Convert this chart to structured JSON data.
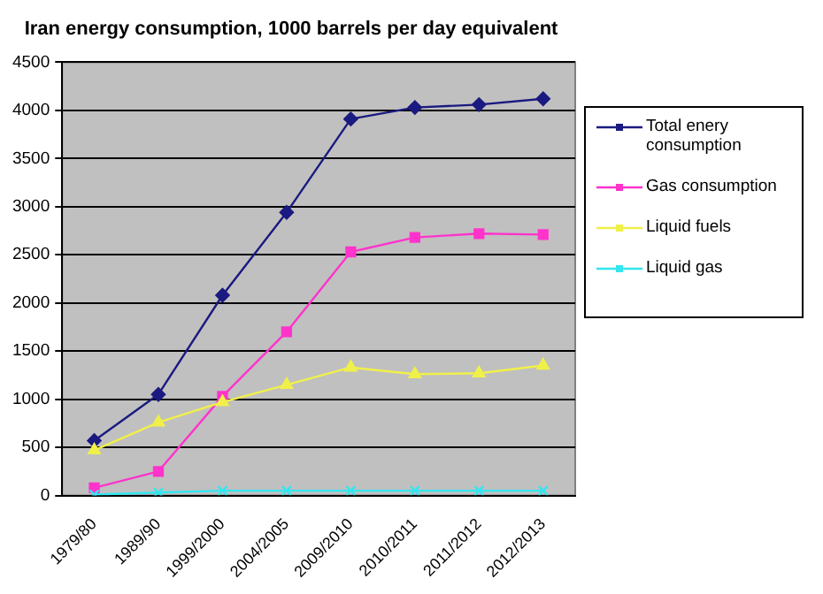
{
  "chart_data": {
    "type": "line",
    "title": "Iran energy consumption, 1000 barrels per day equivalent",
    "categories": [
      "1979/80",
      "1989/90",
      "1999/2000",
      "2004/2005",
      "2009/2010",
      "2010/2011",
      "2011/2012",
      "2012/2013"
    ],
    "series": [
      {
        "name": "Total enery consumption",
        "color": "#1a1a80",
        "marker": "diamond",
        "values": [
          570,
          1050,
          2080,
          2940,
          3910,
          4030,
          4060,
          4120
        ]
      },
      {
        "name": "Gas consumption",
        "color": "#ff33cc",
        "marker": "square",
        "values": [
          80,
          250,
          1030,
          1700,
          2530,
          2680,
          2720,
          2710
        ]
      },
      {
        "name": "Liquid fuels",
        "color": "#f0f04a",
        "marker": "triangle",
        "values": [
          470,
          760,
          970,
          1150,
          1330,
          1260,
          1270,
          1350
        ]
      },
      {
        "name": "Liquid gas",
        "color": "#33e6f0",
        "marker": "cross",
        "values": [
          10,
          30,
          50,
          50,
          50,
          50,
          50,
          50
        ]
      }
    ],
    "ylim": [
      0,
      4500
    ],
    "yticks": [
      0,
      500,
      1000,
      1500,
      2000,
      2500,
      3000,
      3500,
      4000,
      4500
    ],
    "grid": "y",
    "legend": "right"
  }
}
